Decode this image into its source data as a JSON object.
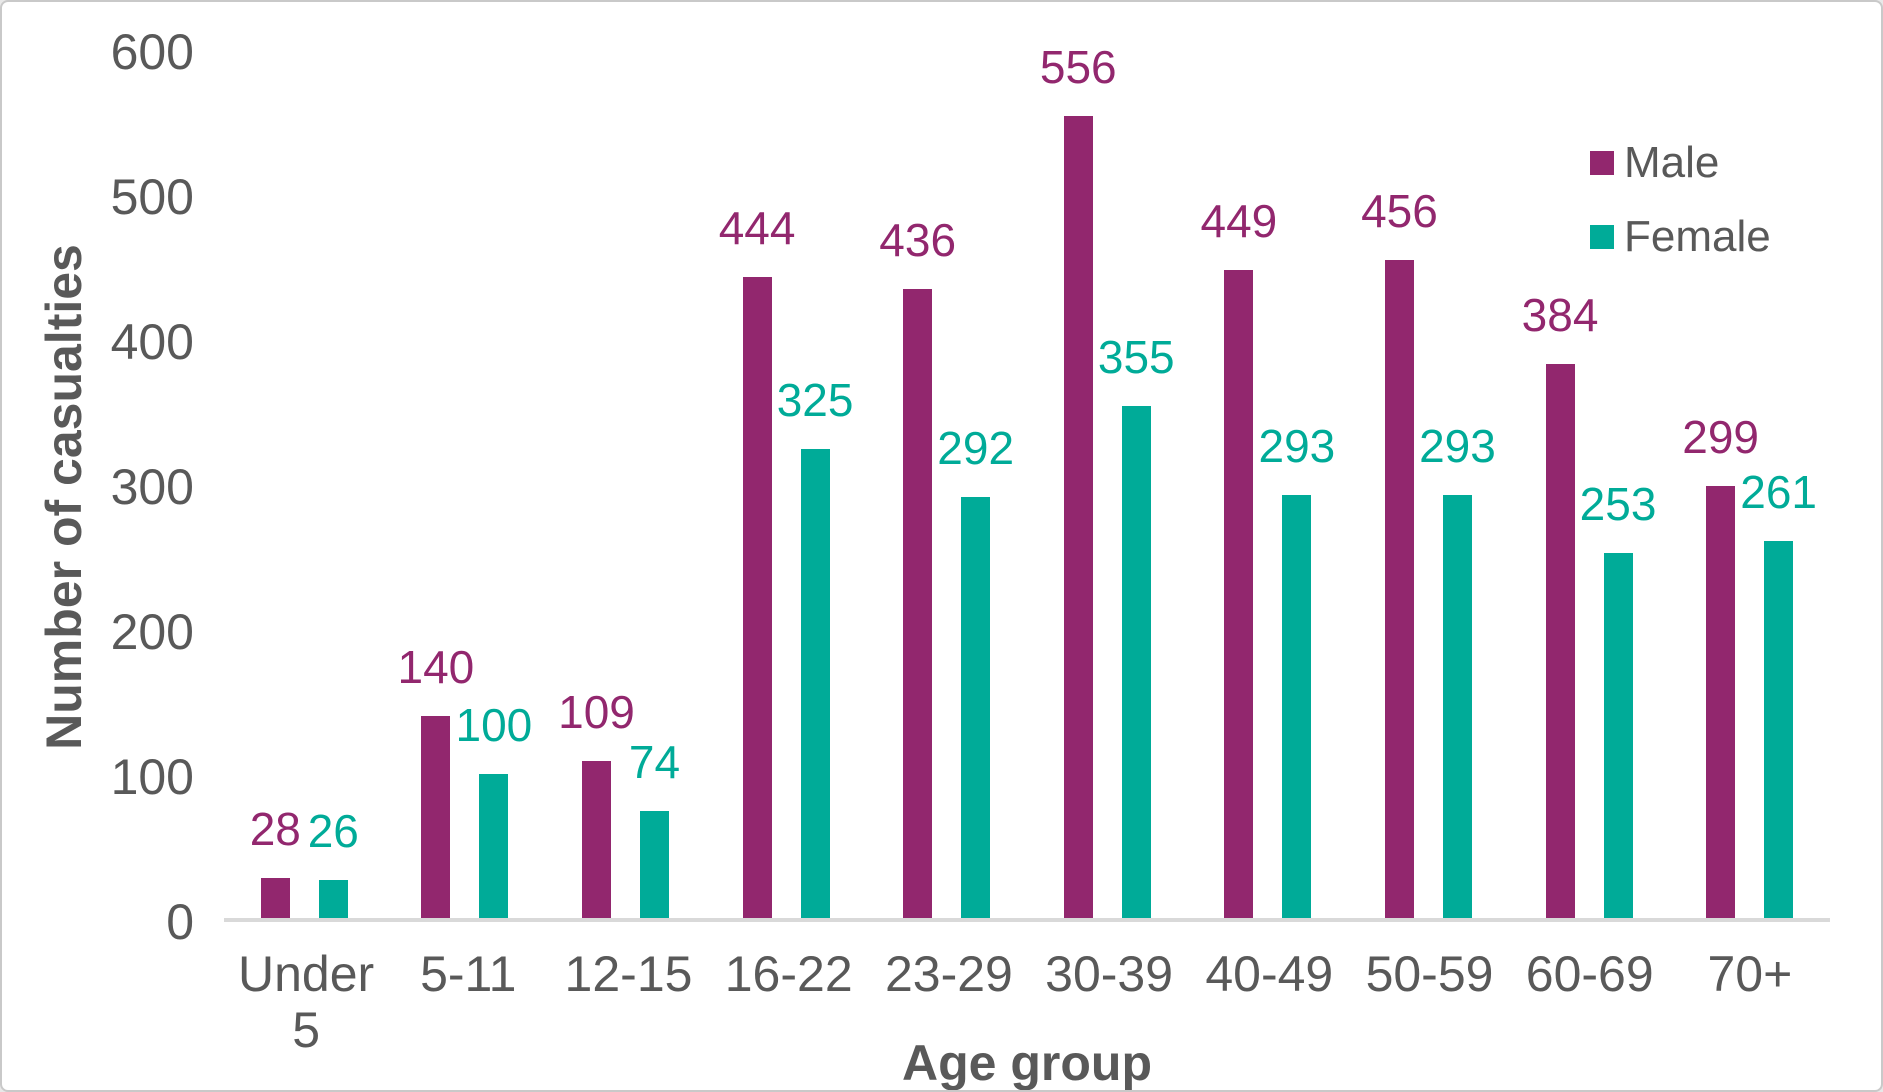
{
  "chart_data": {
    "type": "bar",
    "title": "",
    "xlabel": "Age group",
    "ylabel": "Number of casualties",
    "categories": [
      "Under 5",
      "5-11",
      "12-15",
      "16-22",
      "23-29",
      "30-39",
      "40-49",
      "50-59",
      "60-69",
      "70+"
    ],
    "series": [
      {
        "name": "Male",
        "color": "#92276E",
        "values": [
          28,
          140,
          109,
          444,
          436,
          556,
          449,
          456,
          384,
          299
        ]
      },
      {
        "name": "Female",
        "color": "#00AB98",
        "values": [
          26,
          100,
          74,
          325,
          292,
          355,
          293,
          293,
          253,
          261
        ]
      }
    ],
    "ylim": [
      0,
      600
    ],
    "yticks": [
      0,
      100,
      200,
      300,
      400,
      500,
      600
    ],
    "grid": false,
    "legend_position": "top-right",
    "data_labels": true
  },
  "appearance": {
    "text_color": "#595959",
    "axis_line_color": "#D9D9D9",
    "background_color": "#FFFFFF"
  }
}
